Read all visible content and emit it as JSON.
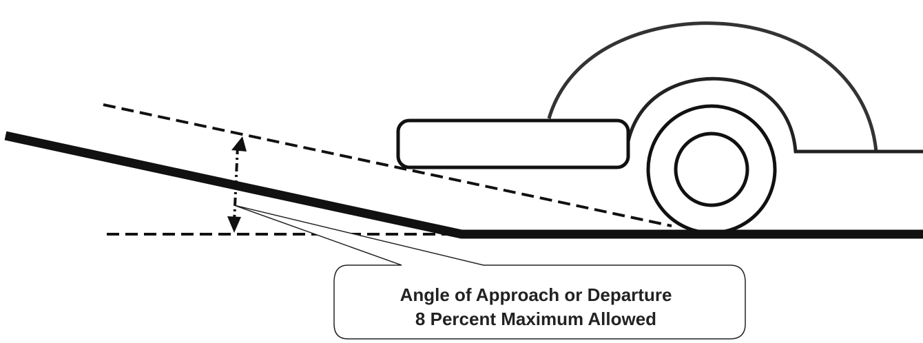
{
  "callout": {
    "lines": [
      "Angle of Approach or Departure",
      "8 Percent Maximum Allowed"
    ]
  }
}
